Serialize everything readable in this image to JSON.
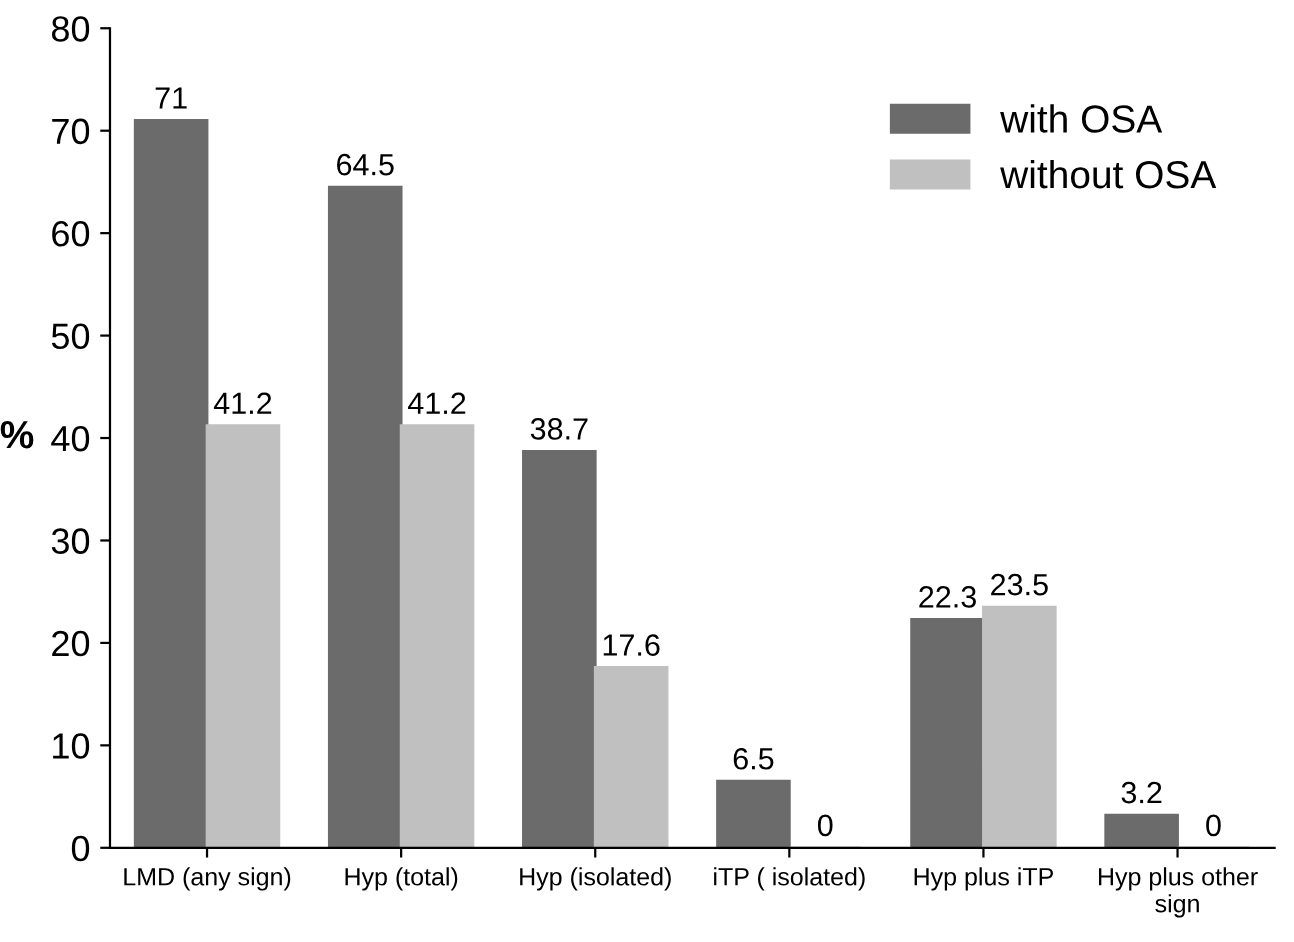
{
  "chart_data": {
    "type": "bar",
    "ylabel": "%",
    "categories": [
      "LMD (any sign)",
      "Hyp (total)",
      "Hyp (isolated)",
      "iTP ( isolated)",
      "Hyp plus iTP",
      "Hyp plus other\nsign"
    ],
    "series": [
      {
        "name": "with OSA",
        "color": "#6b6b6b",
        "values": [
          71,
          64.5,
          38.7,
          6.5,
          22.3,
          3.2
        ]
      },
      {
        "name": "without OSA",
        "color": "#c0c0c0",
        "values": [
          41.2,
          41.2,
          17.6,
          0,
          23.5,
          0
        ]
      }
    ],
    "ylim": [
      0,
      80
    ],
    "yticks": [
      0,
      10,
      20,
      30,
      40,
      50,
      60,
      70,
      80
    ],
    "grid": false,
    "legend": "top right",
    "data_labels": true
  }
}
